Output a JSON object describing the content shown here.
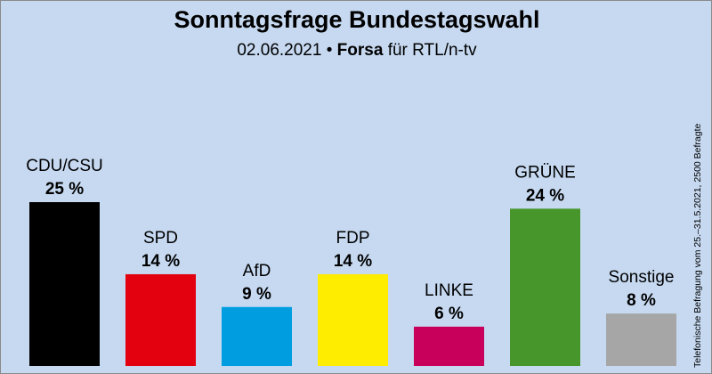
{
  "header": {
    "title": "Sonntagsfrage Bundestagswahl",
    "date": "02.06.2021",
    "bullet": "•",
    "institute": "Forsa",
    "client": "für RTL/n-tv"
  },
  "footnote": "Telefonische Befragung vom 25.–31.5.2021, 2500 Befragte",
  "chart_data": {
    "type": "bar",
    "title": "Sonntagsfrage Bundestagswahl",
    "subtitle": "02.06.2021 • Forsa für RTL/n-tv",
    "categories": [
      "CDU/CSU",
      "SPD",
      "AfD",
      "FDP",
      "LINKE",
      "GRÜNE",
      "Sonstige"
    ],
    "values": [
      25,
      14,
      9,
      14,
      6,
      24,
      8
    ],
    "value_labels": [
      "25 %",
      "14 %",
      "9 %",
      "14 %",
      "6 %",
      "24 %",
      "8 %"
    ],
    "colors": [
      "#000000",
      "#e3000f",
      "#009ee0",
      "#ffed00",
      "#c8005b",
      "#46962b",
      "#a6a6a6"
    ],
    "unit": "%",
    "ylim": [
      0,
      30
    ],
    "grid": false,
    "legend": "none"
  }
}
